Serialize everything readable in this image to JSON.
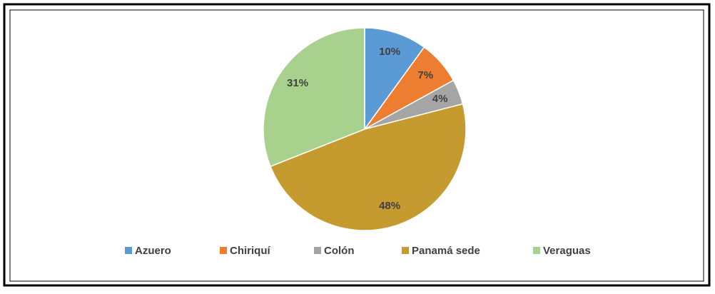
{
  "chart_data": {
    "type": "pie",
    "categories": [
      "Azuero",
      "Chiriquí",
      "Colón",
      "Panamá sede",
      "Veraguas"
    ],
    "values": [
      10,
      7,
      4,
      48,
      31
    ],
    "value_labels": [
      "10%",
      "7%",
      "4%",
      "48%",
      "31%"
    ],
    "colors": [
      "#5b9bd5",
      "#ed7d31",
      "#a5a5a5",
      "#c59b30",
      "#a9d18e"
    ],
    "legend": "bottom"
  }
}
